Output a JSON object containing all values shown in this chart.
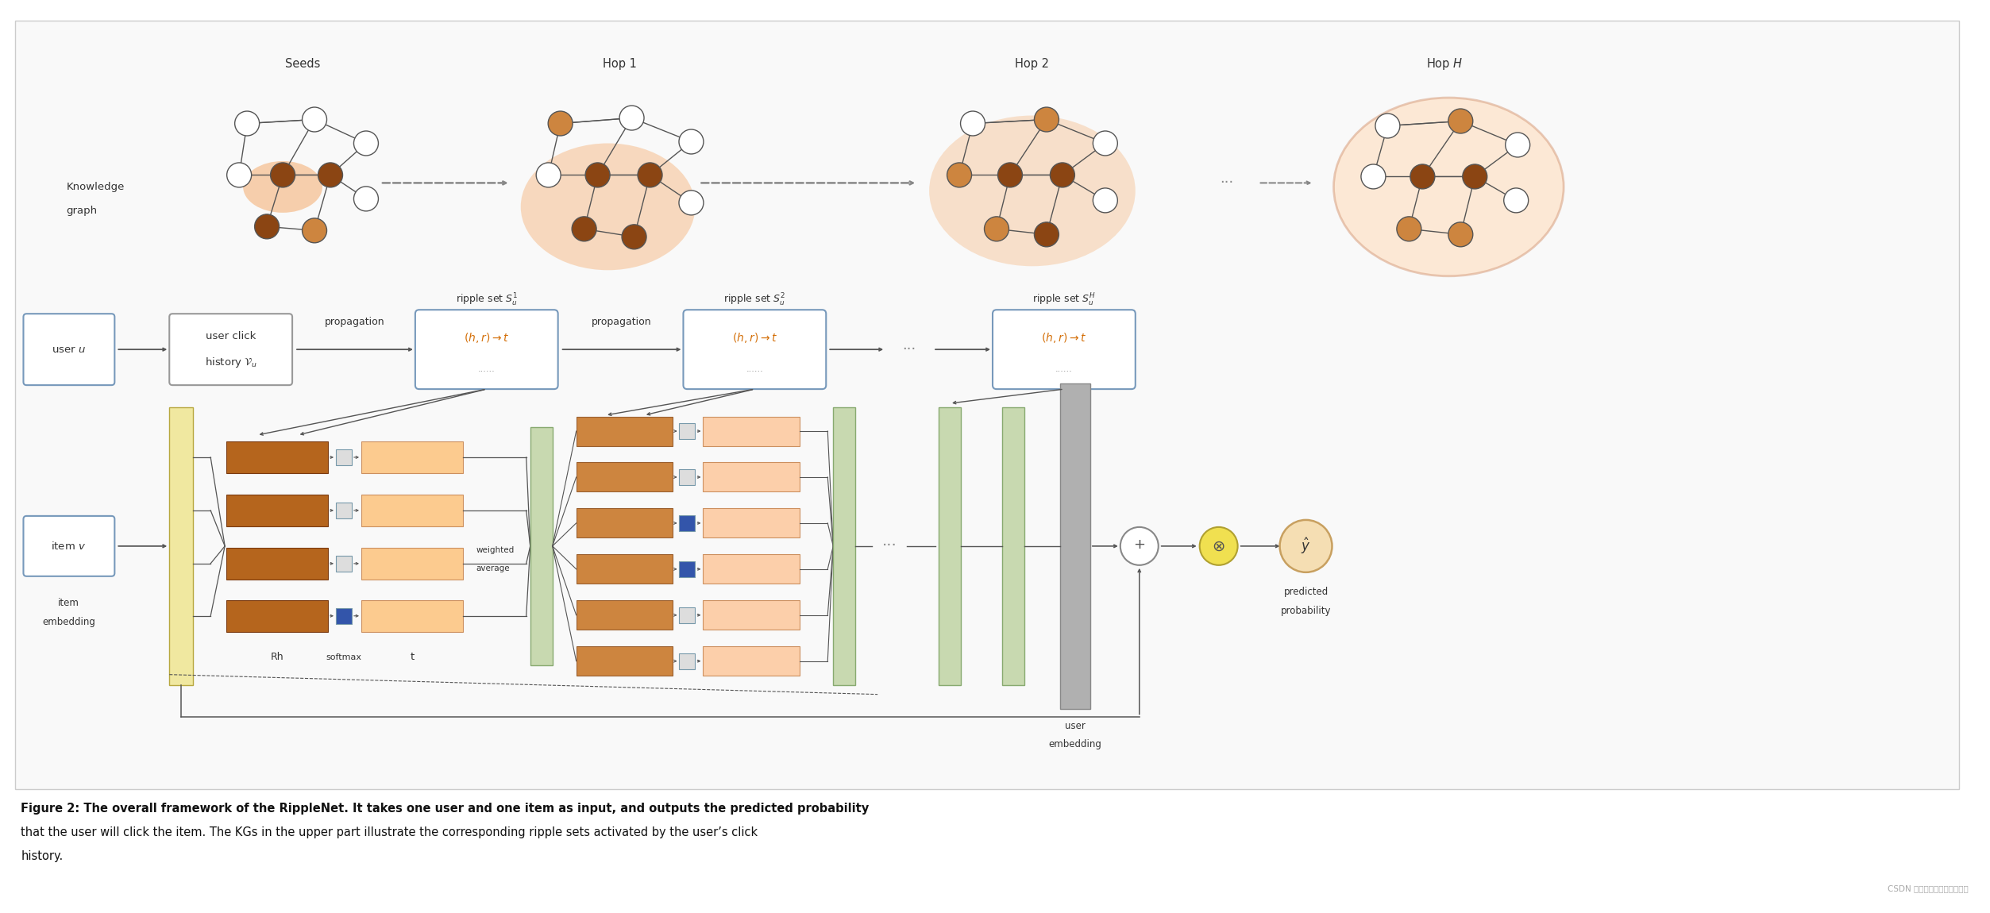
{
  "bg_color": "#ffffff",
  "border_color": "#cccccc",
  "watermark": "CSDN 数据与后端架构提升之路",
  "caption_line1": "Figure 2: The overall framework of the RippleNet. It takes one user and one item as input, and outputs the predicted probability",
  "caption_line2": "that the user will click the item. The KGs in the upper part illustrate the corresponding ripple sets activated by the user’s click",
  "caption_line3": "history.",
  "node_dark": "#8B4513",
  "node_medium": "#CD853F",
  "node_white": "#ffffff",
  "blob_orange": "#F4A460",
  "blob_peach": "#FFDAB9",
  "bar_dark": "#B5651D",
  "bar_medium": "#CD853F",
  "bar_peach": "#F4A070",
  "bar_t_peach": "#FCCB8F",
  "green_col": "#C8D9B0",
  "yellow_col": "#F0E8A0",
  "gray_col": "#B0B0B0",
  "box_blue_ec": "#7799BB",
  "box_gray_ec": "#999999",
  "arrow_col": "#555555",
  "text_col": "#222222",
  "orange_text": "#D4700A",
  "dot_blue": "#3355AA",
  "dot_light": "#DDDDDD"
}
